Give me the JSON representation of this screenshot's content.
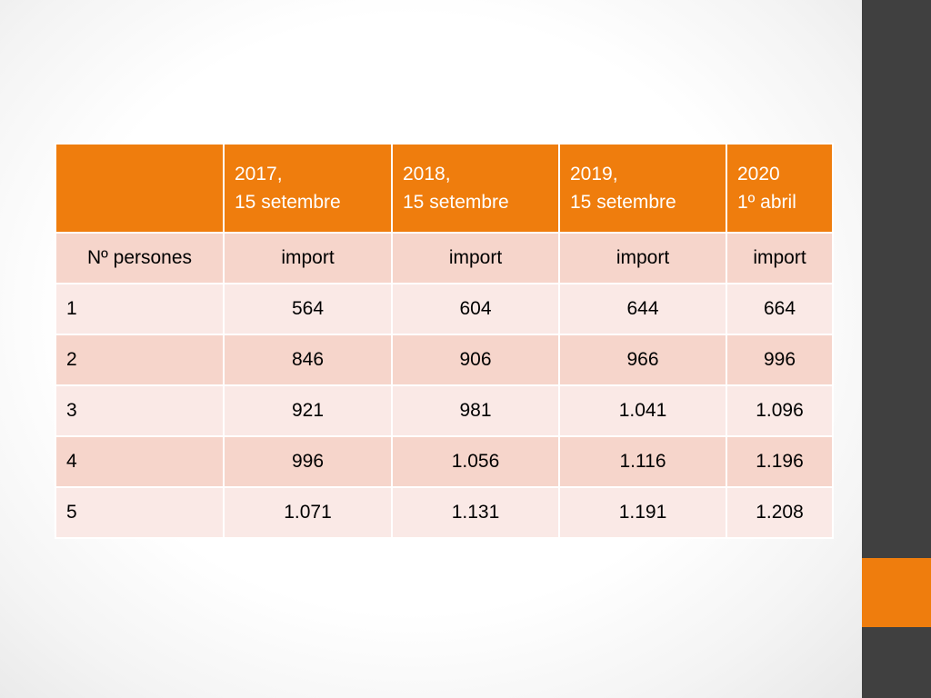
{
  "table": {
    "headers": [
      "",
      "2017,\n15 setembre",
      "2018,\n15 setembre",
      "2019,\n15 setembre",
      "2020\n1º abril"
    ],
    "subheader": [
      "Nº persones",
      "import",
      "import",
      "import",
      "import"
    ],
    "rows": [
      [
        "1",
        "564",
        "604",
        "644",
        "664"
      ],
      [
        "2",
        "846",
        "906",
        "966",
        "996"
      ],
      [
        "3",
        "921",
        "981",
        "1.041",
        "1.096"
      ],
      [
        "4",
        "996",
        "1.056",
        "1.116",
        "1.196"
      ],
      [
        "5",
        "1.071",
        "1.131",
        "1.191",
        "1.208"
      ]
    ]
  },
  "colors": {
    "accent": "#ef7d0d",
    "row_dark": "#f6d5cb",
    "row_light": "#fae9e6",
    "side_bar": "#404040"
  }
}
